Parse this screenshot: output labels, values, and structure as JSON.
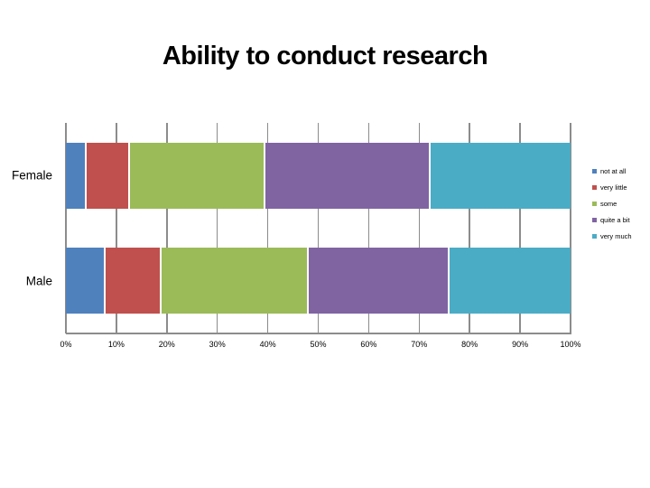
{
  "slide": {
    "title": "Ability to conduct research"
  },
  "chart_data": {
    "type": "bar",
    "orientation": "horizontal",
    "stacked": true,
    "title": "Ability to conduct research",
    "xlabel": "",
    "ylabel": "",
    "xlim": [
      0,
      100
    ],
    "grid": true,
    "legend_position": "right",
    "categories": [
      "Female",
      "Male"
    ],
    "series": [
      {
        "name": "not at all",
        "color": "#4F81BD",
        "values": [
          3.8,
          7.6
        ]
      },
      {
        "name": "very little",
        "color": "#C0504D",
        "values": [
          8.5,
          11.0
        ]
      },
      {
        "name": "some",
        "color": "#9BBB59",
        "values": [
          26.8,
          29.1
        ]
      },
      {
        "name": "quite a bit",
        "color": "#8064A2",
        "values": [
          32.9,
          27.9
        ]
      },
      {
        "name": "very much",
        "color": "#4BACC6",
        "values": [
          28.0,
          24.4
        ]
      }
    ],
    "x_ticks": [
      "0%",
      "10%",
      "20%",
      "30%",
      "40%",
      "50%",
      "60%",
      "70%",
      "80%",
      "90%",
      "100%"
    ]
  },
  "colors": {
    "gridline": "#8C8C8C",
    "axis_line": "#8C8C8C",
    "text": "#000000",
    "background": "#FFFFFF"
  }
}
